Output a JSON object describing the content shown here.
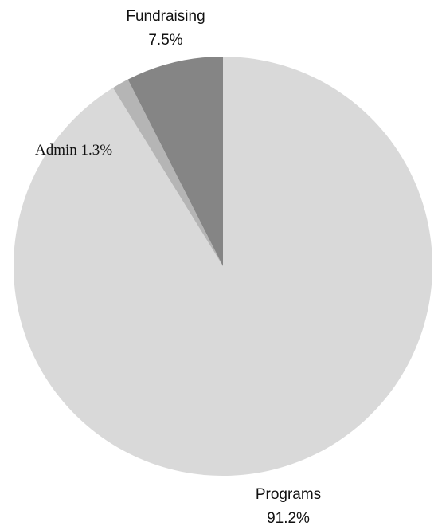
{
  "chart_data": {
    "type": "pie",
    "start_angle_deg": 0,
    "direction": "clockwise",
    "slices": [
      {
        "label": "Programs",
        "value": 91.2,
        "value_text": "91.2%",
        "color": "#d9d9d9",
        "label_style": "two-line"
      },
      {
        "label": "Admin",
        "value": 1.3,
        "value_text": "1.3%",
        "color": "#b5b5b5",
        "label_style": "inline"
      },
      {
        "label": "Fundraising",
        "value": 7.5,
        "value_text": "7.5%",
        "color": "#858585",
        "label_style": "two-line"
      }
    ]
  }
}
